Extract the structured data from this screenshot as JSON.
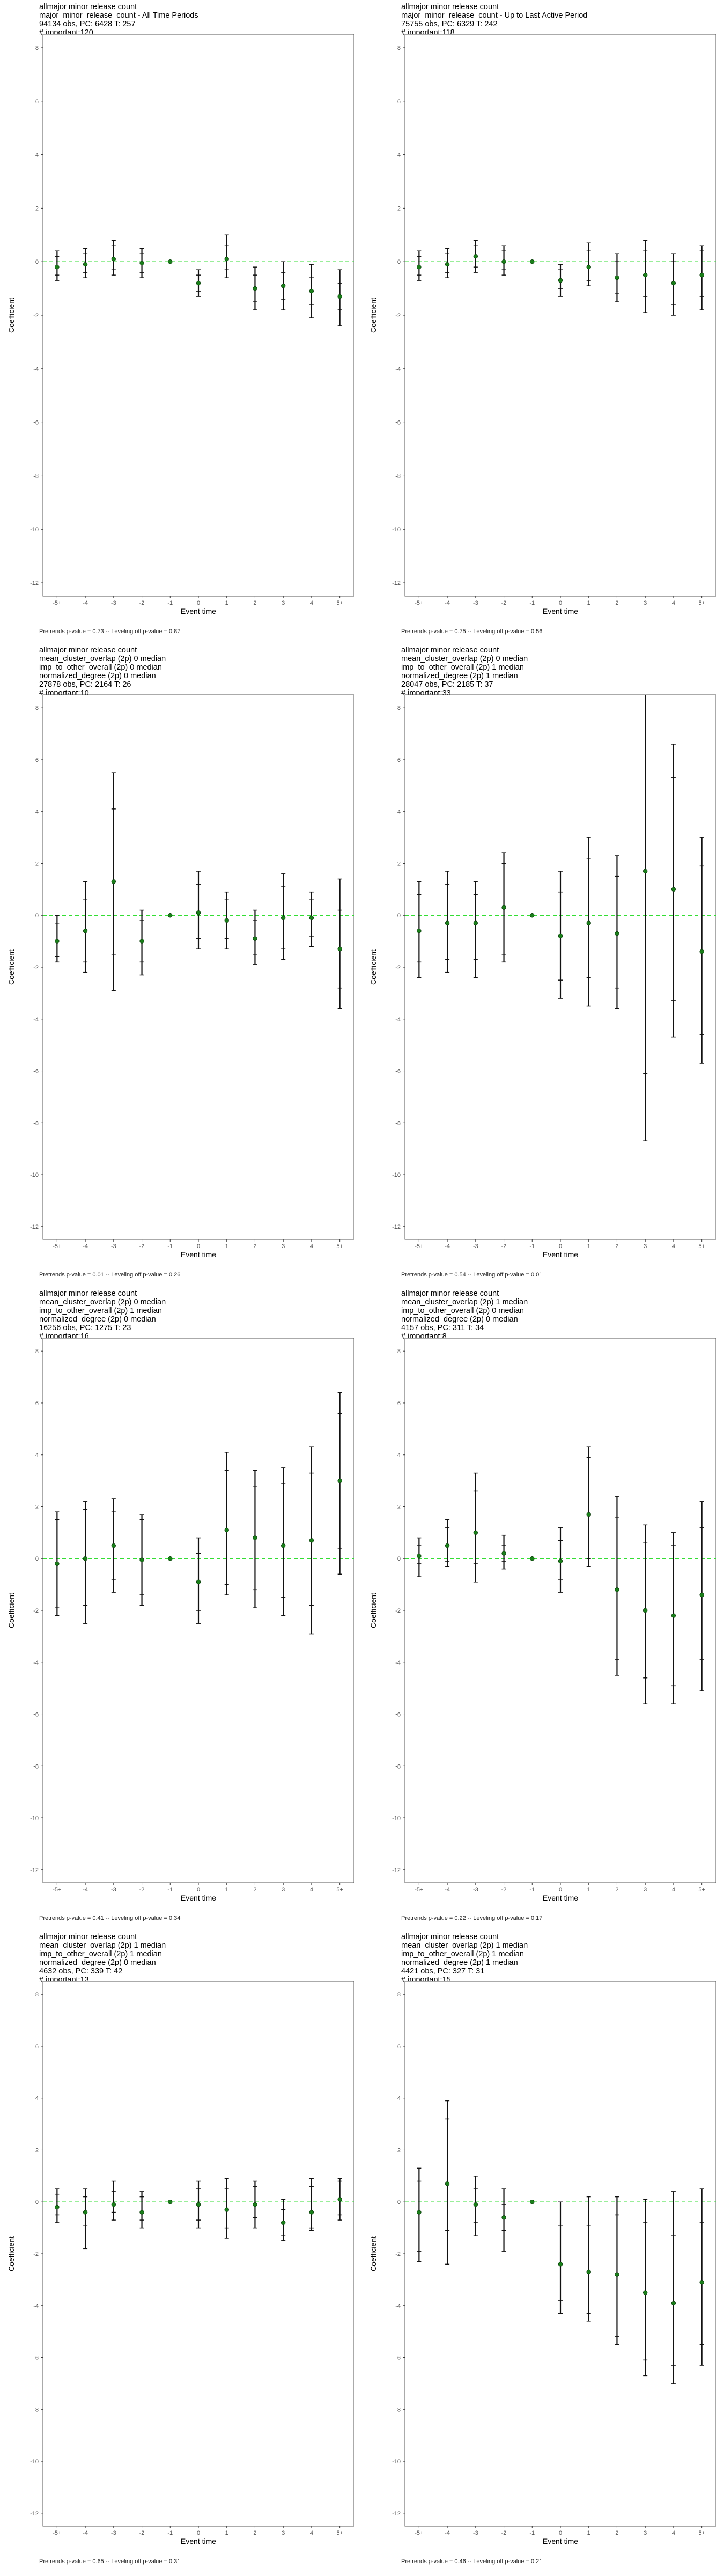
{
  "shared": {
    "ylabel": "Coefficient",
    "xlabel": "Event time",
    "yticks": [
      8,
      6,
      4,
      2,
      0,
      -2,
      -4,
      -6,
      -8,
      -10,
      -12
    ],
    "ylim": [
      -12.5,
      8.5
    ],
    "categories": [
      "-5+",
      "-4",
      "-3",
      "-2",
      "-1",
      "0",
      "1",
      "2",
      "3",
      "4",
      "5+"
    ],
    "colors": {
      "point": "#1a7f1a",
      "zero_line": "#33dd33",
      "bar": "#111111",
      "panel_border": "#555555"
    }
  },
  "chart_data": [
    {
      "type": "scatter",
      "title_lines": [
        " allmajor minor release count",
        "major_minor_release_count - All Time Periods",
        "94134 obs, PC: 6428 T: 257",
        "# important:120"
      ],
      "footer": "Pretrends p-value = 0.73 -- Leveling off p-value = 0.87",
      "coef": [
        -0.2,
        -0.1,
        0.1,
        -0.05,
        0.0,
        -0.8,
        0.1,
        -1.0,
        -0.9,
        -1.1,
        -1.3
      ],
      "ci90": [
        [
          -0.5,
          0.2
        ],
        [
          -0.4,
          0.3
        ],
        [
          -0.3,
          0.6
        ],
        [
          -0.4,
          0.3
        ],
        null,
        [
          -1.1,
          -0.5
        ],
        [
          -0.3,
          0.6
        ],
        [
          -1.5,
          -0.5
        ],
        [
          -1.4,
          -0.4
        ],
        [
          -1.6,
          -0.6
        ],
        [
          -1.8,
          -0.8
        ]
      ],
      "ci95": [
        [
          -0.7,
          0.4
        ],
        [
          -0.6,
          0.5
        ],
        [
          -0.5,
          0.8
        ],
        [
          -0.6,
          0.5
        ],
        null,
        [
          -1.3,
          -0.3
        ],
        [
          -0.6,
          1.0
        ],
        [
          -1.8,
          -0.2
        ],
        [
          -1.8,
          0.0
        ],
        [
          -2.1,
          -0.1
        ],
        [
          -2.4,
          -0.3
        ]
      ]
    },
    {
      "type": "scatter",
      "title_lines": [
        " allmajor minor release count",
        "major_minor_release_count - Up to Last Active Period",
        "75755 obs, PC: 6329 T: 242",
        "# important:118"
      ],
      "footer": "Pretrends p-value = 0.75 -- Leveling off p-value = 0.56",
      "coef": [
        -0.2,
        -0.1,
        0.2,
        0.0,
        0.0,
        -0.7,
        -0.2,
        -0.6,
        -0.5,
        -0.8,
        -0.5
      ],
      "ci90": [
        [
          -0.5,
          0.2
        ],
        [
          -0.4,
          0.3
        ],
        [
          -0.2,
          0.6
        ],
        [
          -0.3,
          0.4
        ],
        null,
        [
          -1.0,
          -0.3
        ],
        [
          -0.7,
          0.4
        ],
        [
          -1.2,
          0.0
        ],
        [
          -1.3,
          0.4
        ],
        [
          -1.6,
          0.0
        ],
        [
          -1.3,
          0.4
        ]
      ],
      "ci95": [
        [
          -0.7,
          0.4
        ],
        [
          -0.6,
          0.5
        ],
        [
          -0.4,
          0.8
        ],
        [
          -0.5,
          0.6
        ],
        null,
        [
          -1.3,
          -0.1
        ],
        [
          -0.9,
          0.7
        ],
        [
          -1.5,
          0.3
        ],
        [
          -1.9,
          0.8
        ],
        [
          -2.0,
          0.3
        ],
        [
          -1.8,
          0.6
        ]
      ]
    },
    {
      "type": "scatter",
      "title_lines": [
        " allmajor minor release count",
        "mean_cluster_overlap (2p) 0 median",
        "imp_to_other_overall (2p) 0 median",
        "normalized_degree (2p) 0 median",
        "27878 obs, PC: 2164 T: 26",
        "# important:10"
      ],
      "footer": "Pretrends p-value = 0.01 -- Leveling off p-value = 0.26",
      "coef": [
        -1.0,
        -0.6,
        1.3,
        -1.0,
        0.0,
        0.1,
        -0.2,
        -0.9,
        -0.1,
        -0.1,
        -1.3
      ],
      "ci90": [
        [
          -1.6,
          -0.3
        ],
        [
          -1.8,
          0.6
        ],
        [
          -1.5,
          4.1
        ],
        [
          -1.8,
          -0.2
        ],
        null,
        [
          -0.9,
          1.2
        ],
        [
          -0.9,
          0.6
        ],
        [
          -1.5,
          -0.2
        ],
        [
          -1.3,
          1.1
        ],
        [
          -0.8,
          0.6
        ],
        [
          -2.8,
          0.2
        ]
      ],
      "ci95": [
        [
          -1.8,
          0.0
        ],
        [
          -2.2,
          1.3
        ],
        [
          -2.9,
          5.5
        ],
        [
          -2.3,
          0.2
        ],
        null,
        [
          -1.3,
          1.7
        ],
        [
          -1.3,
          0.9
        ],
        [
          -1.9,
          0.2
        ],
        [
          -1.7,
          1.6
        ],
        [
          -1.2,
          0.9
        ],
        [
          -3.6,
          1.4
        ]
      ]
    },
    {
      "type": "scatter",
      "title_lines": [
        " allmajor minor release count",
        "mean_cluster_overlap (2p) 0 median",
        "imp_to_other_overall (2p) 1 median",
        "normalized_degree (2p) 1 median",
        "28047 obs, PC: 2185 T: 37",
        "# important:33"
      ],
      "footer": "Pretrends p-value = 0.54 -- Leveling off p-value = 0.01",
      "coef": [
        -0.6,
        -0.3,
        -0.3,
        0.3,
        0.0,
        -0.8,
        -0.3,
        -0.7,
        1.7,
        1.0,
        -1.4
      ],
      "ci90": [
        [
          -1.8,
          0.8
        ],
        [
          -1.7,
          1.2
        ],
        [
          -1.7,
          0.8
        ],
        [
          -1.5,
          2.0
        ],
        null,
        [
          -2.5,
          0.9
        ],
        [
          -2.4,
          2.2
        ],
        [
          -2.8,
          1.5
        ],
        [
          -6.1,
          9.0
        ],
        [
          -3.3,
          5.3
        ],
        [
          -4.6,
          1.9
        ]
      ],
      "ci95": [
        [
          -2.4,
          1.3
        ],
        [
          -2.2,
          1.7
        ],
        [
          -2.4,
          1.3
        ],
        [
          -1.8,
          2.4
        ],
        null,
        [
          -3.2,
          1.7
        ],
        [
          -3.5,
          3.0
        ],
        [
          -3.6,
          2.3
        ],
        [
          -8.7,
          9.0
        ],
        [
          -4.7,
          6.6
        ],
        [
          -5.7,
          3.0
        ]
      ]
    },
    {
      "type": "scatter",
      "title_lines": [
        " allmajor minor release count",
        "mean_cluster_overlap (2p) 0 median",
        "imp_to_other_overall (2p) 1 median",
        "normalized_degree (2p) 0 median",
        "16256 obs, PC: 1275 T: 23",
        "# important:16"
      ],
      "footer": "Pretrends p-value = 0.41 -- Leveling off p-value = 0.34",
      "coef": [
        -0.2,
        0.0,
        0.5,
        -0.05,
        0.0,
        -0.9,
        1.1,
        0.8,
        0.5,
        0.7,
        3.0
      ],
      "ci90": [
        [
          -1.9,
          1.5
        ],
        [
          -1.8,
          1.9
        ],
        [
          -0.8,
          1.8
        ],
        [
          -1.4,
          1.5
        ],
        null,
        [
          -2.0,
          0.2
        ],
        [
          -1.0,
          3.4
        ],
        [
          -1.2,
          2.8
        ],
        [
          -1.5,
          2.9
        ],
        [
          -1.8,
          3.3
        ],
        [
          0.4,
          5.6
        ]
      ],
      "ci95": [
        [
          -2.2,
          1.8
        ],
        [
          -2.5,
          2.2
        ],
        [
          -1.3,
          2.3
        ],
        [
          -1.8,
          1.7
        ],
        null,
        [
          -2.5,
          0.8
        ],
        [
          -1.4,
          4.1
        ],
        [
          -1.9,
          3.4
        ],
        [
          -2.2,
          3.5
        ],
        [
          -2.9,
          4.3
        ],
        [
          -0.6,
          6.4
        ]
      ]
    },
    {
      "type": "scatter",
      "title_lines": [
        " allmajor minor release count",
        "mean_cluster_overlap (2p) 1 median",
        "imp_to_other_overall (2p) 0 median",
        "normalized_degree (2p) 0 median",
        "4157 obs, PC: 311 T: 34",
        "# important:8"
      ],
      "footer": "Pretrends p-value = 0.22 -- Leveling off p-value = 0.17",
      "coef": [
        0.1,
        0.5,
        1.0,
        0.2,
        0.0,
        -0.1,
        1.7,
        -1.2,
        -2.0,
        -2.2,
        -1.4
      ],
      "ci90": [
        [
          -0.2,
          0.5
        ],
        [
          -0.1,
          1.2
        ],
        [
          -0.2,
          2.6
        ],
        [
          -0.1,
          0.5
        ],
        null,
        [
          -0.8,
          0.7
        ],
        [
          0.0,
          3.9
        ],
        [
          -3.9,
          1.6
        ],
        [
          -4.6,
          0.6
        ],
        [
          -4.9,
          0.5
        ],
        [
          -3.9,
          1.2
        ]
      ],
      "ci95": [
        [
          -0.7,
          0.8
        ],
        [
          -0.3,
          1.5
        ],
        [
          -0.9,
          3.3
        ],
        [
          -0.4,
          0.9
        ],
        null,
        [
          -1.3,
          1.2
        ],
        [
          -0.3,
          4.3
        ],
        [
          -4.5,
          2.4
        ],
        [
          -5.6,
          1.3
        ],
        [
          -5.6,
          1.0
        ],
        [
          -5.1,
          2.2
        ]
      ]
    },
    {
      "type": "scatter",
      "title_lines": [
        " allmajor minor release count",
        "mean_cluster_overlap (2p) 1 median",
        "imp_to_other_overall (2p) 1 median",
        "normalized_degree (2p) 0 median",
        "4632 obs, PC: 339 T: 42",
        "# important:13"
      ],
      "footer": "Pretrends p-value = 0.65 -- Leveling off p-value = 0.31",
      "coef": [
        -0.2,
        -0.4,
        -0.1,
        -0.4,
        0.0,
        -0.1,
        -0.3,
        -0.1,
        -0.8,
        -0.4,
        0.1
      ],
      "ci90": [
        [
          -0.5,
          0.3
        ],
        [
          -0.9,
          0.2
        ],
        [
          -0.4,
          0.4
        ],
        [
          -0.7,
          0.2
        ],
        null,
        [
          -0.7,
          0.5
        ],
        [
          -1.0,
          0.5
        ],
        [
          -0.6,
          0.6
        ],
        [
          -1.3,
          -0.3
        ],
        [
          -1.0,
          0.6
        ],
        [
          -0.5,
          0.8
        ]
      ],
      "ci95": [
        [
          -0.8,
          0.5
        ],
        [
          -1.8,
          0.5
        ],
        [
          -0.7,
          0.8
        ],
        [
          -1.0,
          0.4
        ],
        null,
        [
          -1.0,
          0.8
        ],
        [
          -1.4,
          0.9
        ],
        [
          -1.0,
          0.8
        ],
        [
          -1.5,
          0.1
        ],
        [
          -1.1,
          0.9
        ],
        [
          -0.7,
          0.9
        ]
      ]
    },
    {
      "type": "scatter",
      "title_lines": [
        " allmajor minor release count",
        "mean_cluster_overlap (2p) 1 median",
        "imp_to_other_overall (2p) 1 median",
        "normalized_degree (2p) 1 median",
        "4421 obs, PC: 327 T: 31",
        "# important:15"
      ],
      "footer": "Pretrends p-value = 0.46 -- Leveling off p-value = 0.21",
      "coef": [
        -0.4,
        0.7,
        -0.1,
        -0.6,
        0.0,
        -2.4,
        -2.7,
        -2.8,
        -3.5,
        -3.9,
        -3.1
      ],
      "ci90": [
        [
          -1.9,
          0.8
        ],
        [
          -1.1,
          3.2
        ],
        [
          -0.8,
          0.5
        ],
        [
          -1.1,
          -0.1
        ],
        null,
        [
          -3.8,
          -0.9
        ],
        [
          -4.3,
          -0.9
        ],
        [
          -5.2,
          -0.5
        ],
        [
          -6.1,
          -0.8
        ],
        [
          -6.3,
          -1.3
        ],
        [
          -5.5,
          -0.8
        ]
      ],
      "ci95": [
        [
          -2.3,
          1.3
        ],
        [
          -2.4,
          3.9
        ],
        [
          -1.3,
          1.0
        ],
        [
          -1.9,
          0.5
        ],
        null,
        [
          -4.3,
          0.0
        ],
        [
          -4.6,
          0.2
        ],
        [
          -5.5,
          0.2
        ],
        [
          -6.7,
          0.1
        ],
        [
          -7.0,
          0.4
        ],
        [
          -6.3,
          0.5
        ]
      ]
    }
  ]
}
